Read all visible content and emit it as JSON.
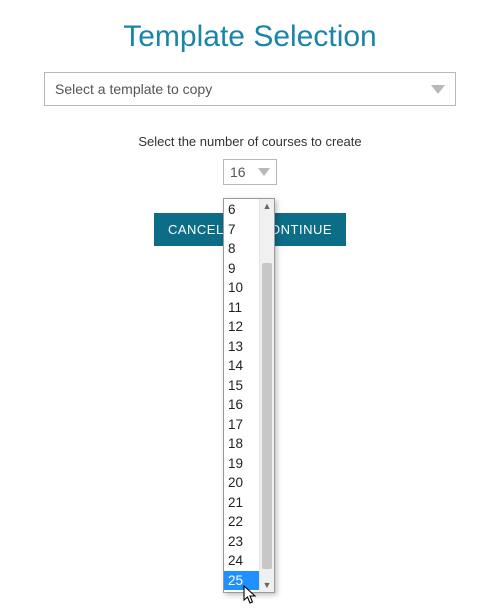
{
  "colors": {
    "accent": "#1a85a8",
    "button_bg": "#0c6d87",
    "button_fg": "#ffffff",
    "border": "#b8b8b8",
    "dropdown_highlight_bg": "#1e90ff",
    "dropdown_highlight_fg": "#ffffff",
    "text": "#333333",
    "background": "#ffffff",
    "scrollbar_track": "#f0f0f0",
    "scrollbar_thumb": "#c7c7c7"
  },
  "header": {
    "title": "Template Selection"
  },
  "template_select": {
    "placeholder": "Select a template to copy"
  },
  "course_count": {
    "label": "Select the number of courses to create",
    "selected_value": "16",
    "visible_options": [
      "6",
      "7",
      "8",
      "9",
      "10",
      "11",
      "12",
      "13",
      "14",
      "15",
      "16",
      "17",
      "18",
      "19",
      "20",
      "21",
      "22",
      "23",
      "24",
      "25"
    ],
    "highlighted_option": "25"
  },
  "buttons": {
    "cancel_label": "CANCEL",
    "continue_label": "CONTINUE"
  }
}
